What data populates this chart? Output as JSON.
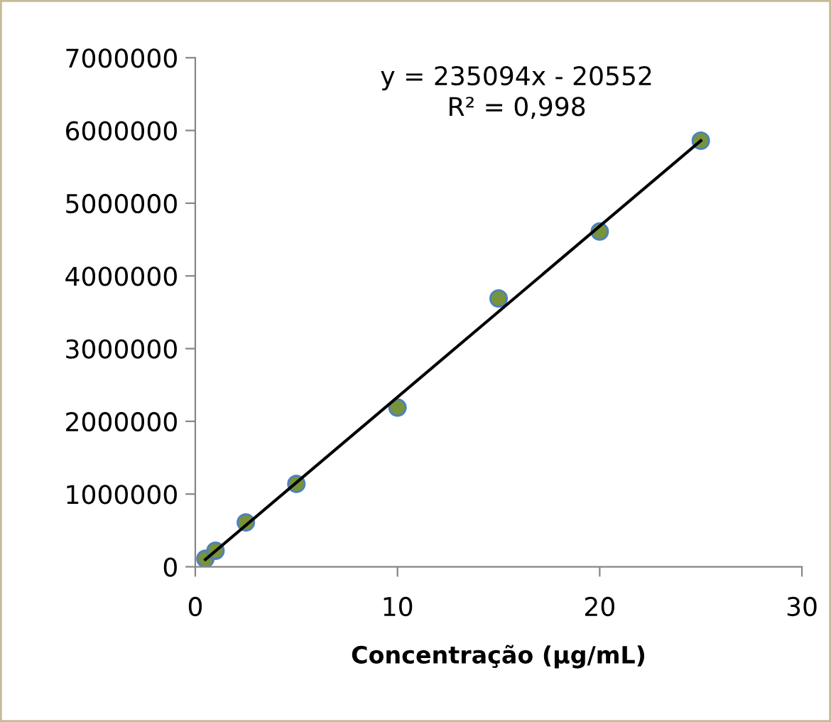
{
  "chart_data": {
    "type": "scatter",
    "xlabel": "Concentração (µg/mL)",
    "annotations": [
      "y = 235094x - 20552\nR² = 0,998"
    ],
    "xlim": [
      0,
      30
    ],
    "xticks": [
      0,
      10,
      20,
      30
    ],
    "ylim": [
      0,
      7000000
    ],
    "yticks": [
      0,
      1000000,
      2000000,
      3000000,
      4000000,
      5000000,
      6000000,
      7000000
    ],
    "grid": false,
    "legend": false,
    "marker": "circle",
    "series": [
      {
        "color": "#77933c",
        "x": [
          0.5,
          1,
          2.5,
          5,
          10,
          15,
          20,
          25
        ],
        "values": [
          110000,
          220000,
          610000,
          1140000,
          2190000,
          3690000,
          4610000,
          5860000
        ]
      },
      {
        "type": "line",
        "color": "#000000",
        "x": [
          0.5,
          25
        ],
        "values": [
          100000,
          5860000
        ],
        "marker": "none",
        "line_style": "solid"
      }
    ]
  }
}
